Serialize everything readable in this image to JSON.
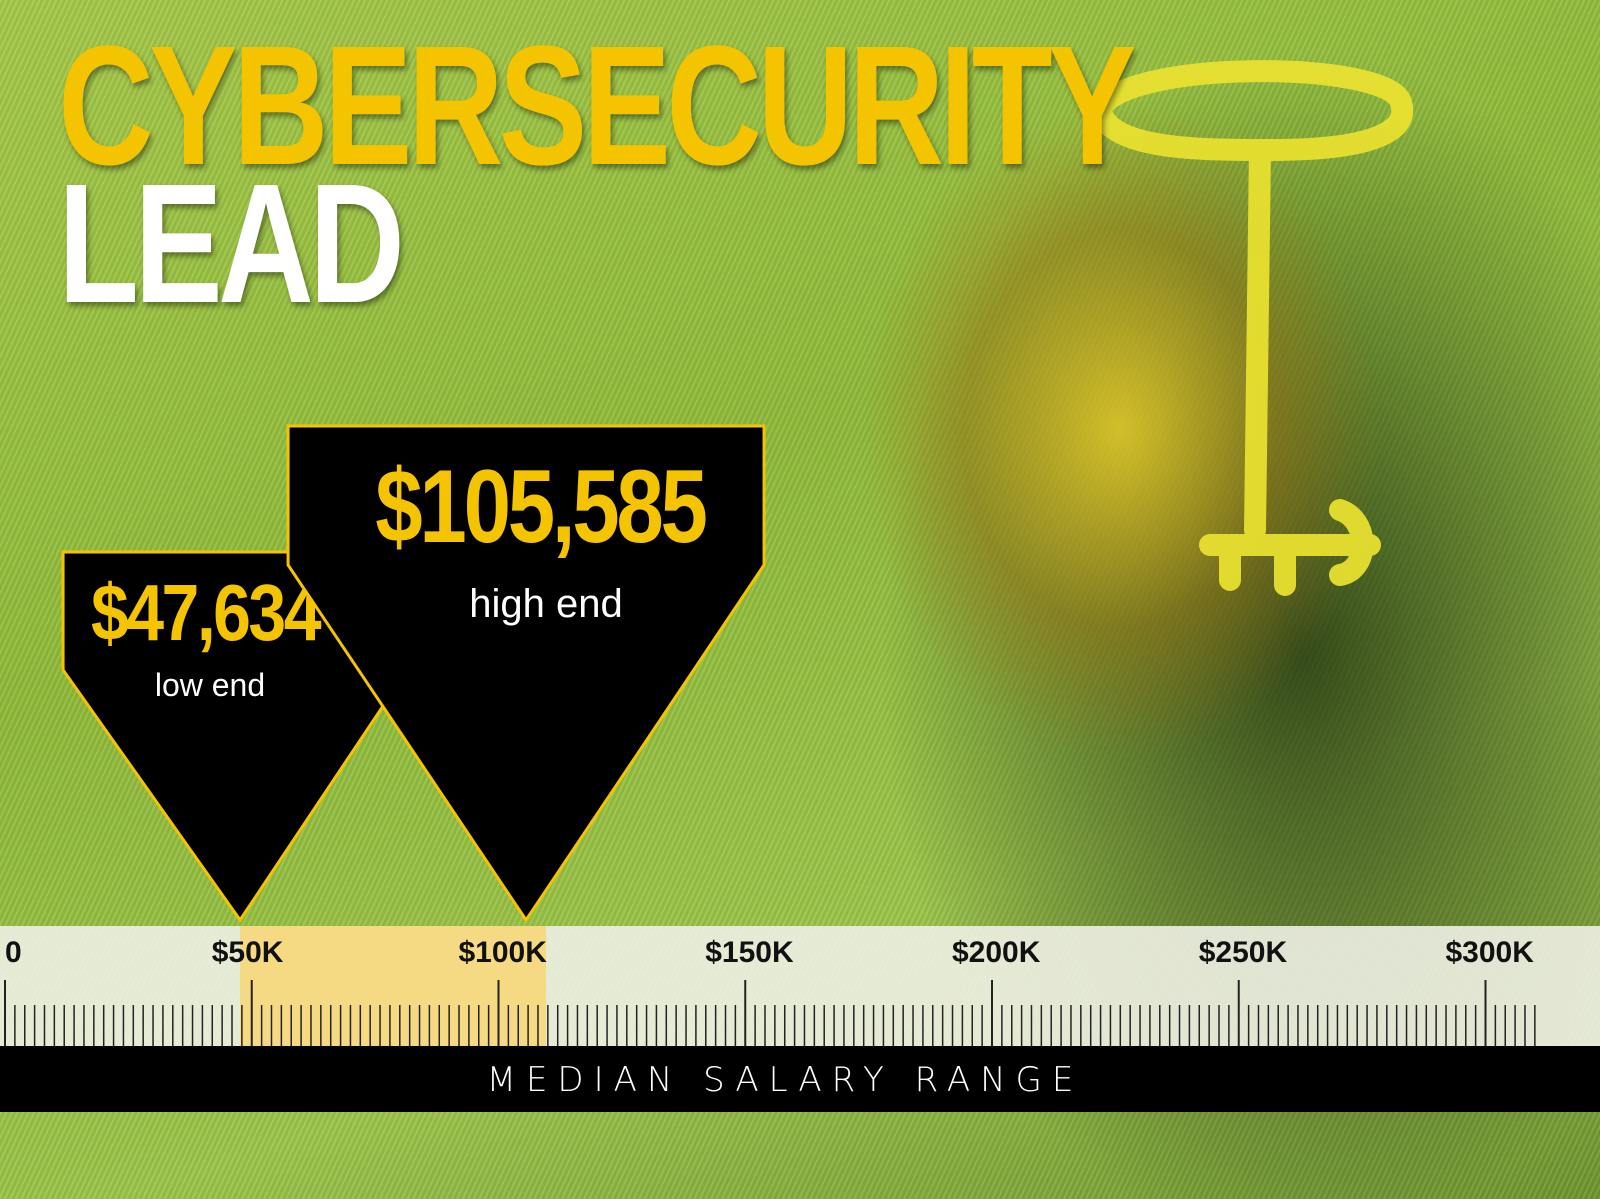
{
  "title": {
    "line1": "CYBERSECURITY",
    "line2": "LEAD"
  },
  "colors": {
    "accent": "#f5c400",
    "band": "#f7d77a",
    "panel": "#000000",
    "ruler_bg": "#eef0e4"
  },
  "chart_data": {
    "type": "range",
    "xlabel": "MEDIAN SALARY RANGE",
    "xlim": [
      0,
      310000
    ],
    "ticks": [
      {
        "value": 0,
        "label": "0"
      },
      {
        "value": 50000,
        "label": "$50K"
      },
      {
        "value": 100000,
        "label": "$100K"
      },
      {
        "value": 150000,
        "label": "$150K"
      },
      {
        "value": 200000,
        "label": "$200K"
      },
      {
        "value": 250000,
        "label": "$250K"
      },
      {
        "value": 300000,
        "label": "$300K"
      }
    ],
    "minor_tick_step": 2000,
    "low": {
      "value": 47634,
      "value_label": "$47,634",
      "label": "low end"
    },
    "high": {
      "value": 105585,
      "value_label": "$105,585",
      "label": "high end"
    }
  },
  "icons": {
    "illustration": "key-icon"
  }
}
